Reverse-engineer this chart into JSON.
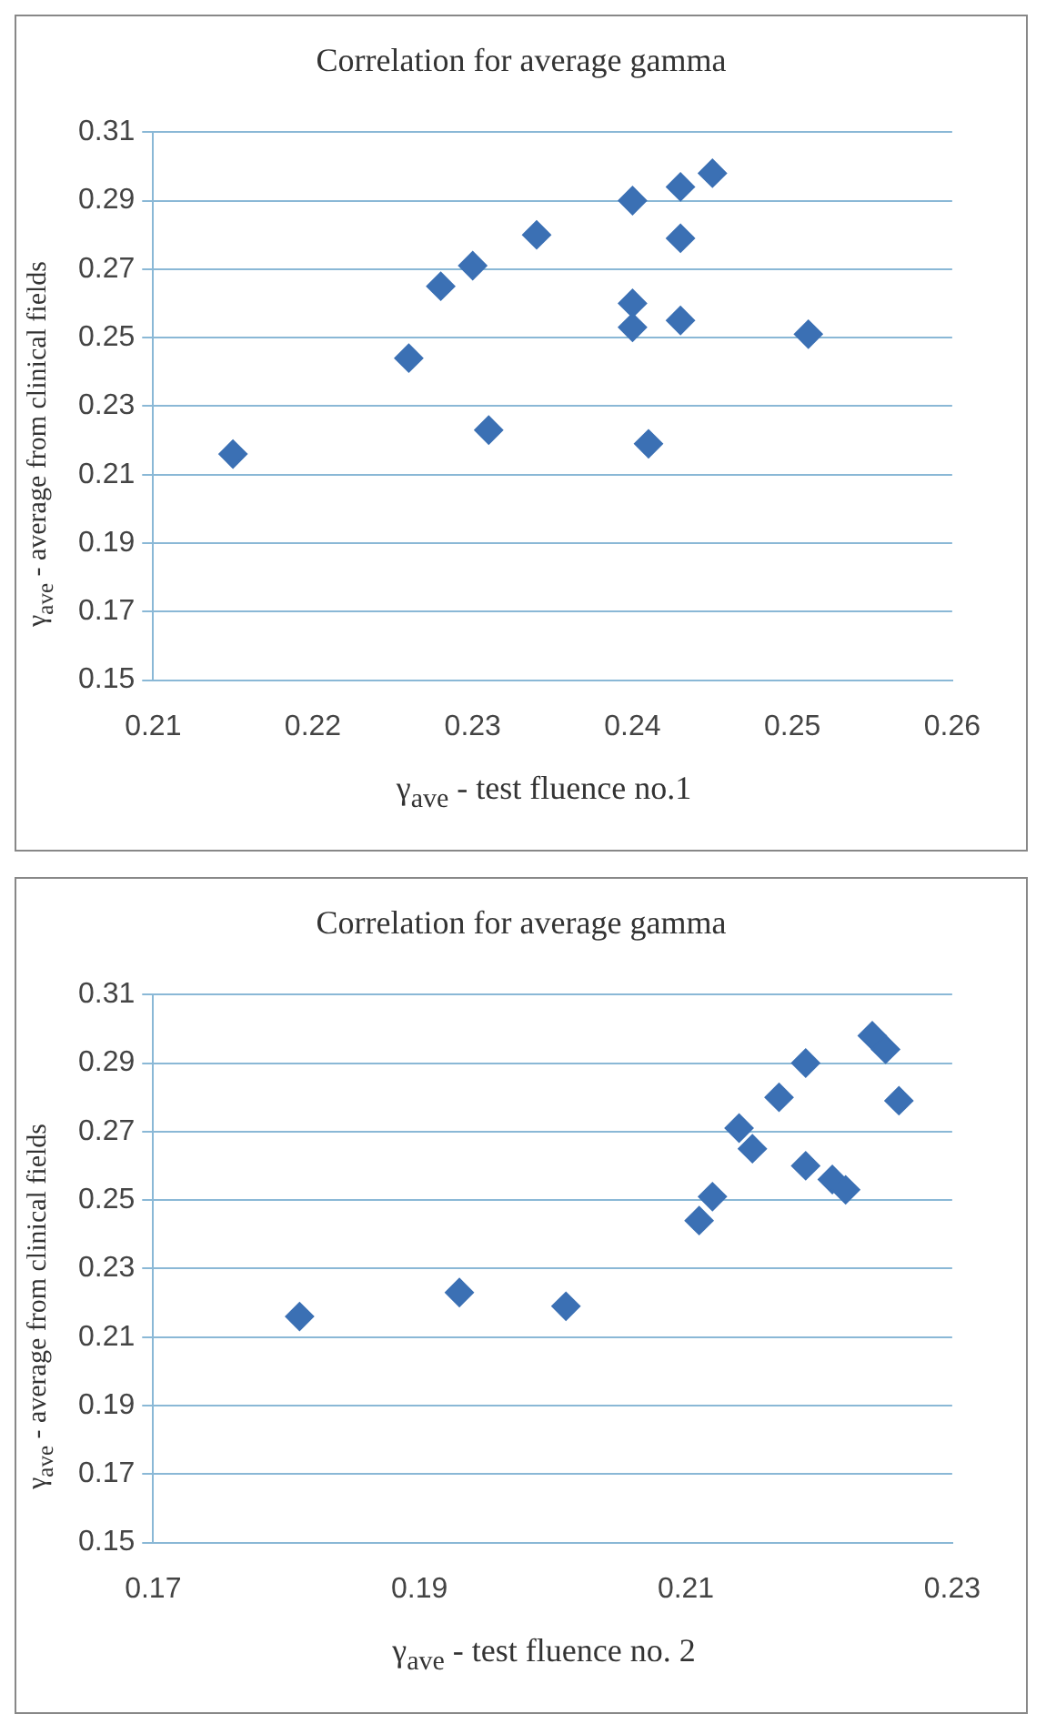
{
  "chart_data": [
    {
      "type": "scatter",
      "title": "Correlation for average gamma",
      "xlabel": "γ$_{ave}$ - test fluence no.1",
      "ylabel": "γ$_{ave}$ - average from clinical fields",
      "marker": "diamond",
      "grid": "y",
      "legend": false,
      "xlim": [
        0.21,
        0.26
      ],
      "xticks": [
        0.21,
        0.22,
        0.23,
        0.24,
        0.25,
        0.26
      ],
      "ylim": [
        0.15,
        0.31
      ],
      "yticks": [
        0.15,
        0.17,
        0.19,
        0.21,
        0.23,
        0.25,
        0.27,
        0.29,
        0.31
      ],
      "series": [
        {
          "color": "#3b70b4",
          "x": [
            0.215,
            0.226,
            0.228,
            0.23,
            0.231,
            0.234,
            0.24,
            0.24,
            0.24,
            0.241,
            0.243,
            0.243,
            0.243,
            0.245,
            0.251
          ],
          "values": [
            0.216,
            0.244,
            0.265,
            0.271,
            0.223,
            0.28,
            0.29,
            0.26,
            0.253,
            0.219,
            0.294,
            0.279,
            0.255,
            0.298,
            0.251
          ]
        }
      ]
    },
    {
      "type": "scatter",
      "title": "Correlation for average gamma",
      "xlabel": "γ$_{ave}$ - test fluence no. 2",
      "ylabel": "γ$_{ave}$ - average from clinical fields",
      "marker": "diamond",
      "grid": "y",
      "legend": false,
      "xlim": [
        0.17,
        0.23
      ],
      "xticks": [
        0.17,
        0.19,
        0.21,
        0.23
      ],
      "ylim": [
        0.15,
        0.31
      ],
      "yticks": [
        0.15,
        0.17,
        0.19,
        0.21,
        0.23,
        0.25,
        0.27,
        0.29,
        0.31
      ],
      "series": [
        {
          "color": "#3b70b4",
          "x": [
            0.181,
            0.193,
            0.201,
            0.211,
            0.212,
            0.214,
            0.215,
            0.217,
            0.219,
            0.219,
            0.221,
            0.222,
            0.224,
            0.225,
            0.226
          ],
          "values": [
            0.216,
            0.223,
            0.219,
            0.244,
            0.251,
            0.271,
            0.265,
            0.28,
            0.29,
            0.26,
            0.256,
            0.253,
            0.298,
            0.294,
            0.279
          ]
        }
      ]
    }
  ]
}
